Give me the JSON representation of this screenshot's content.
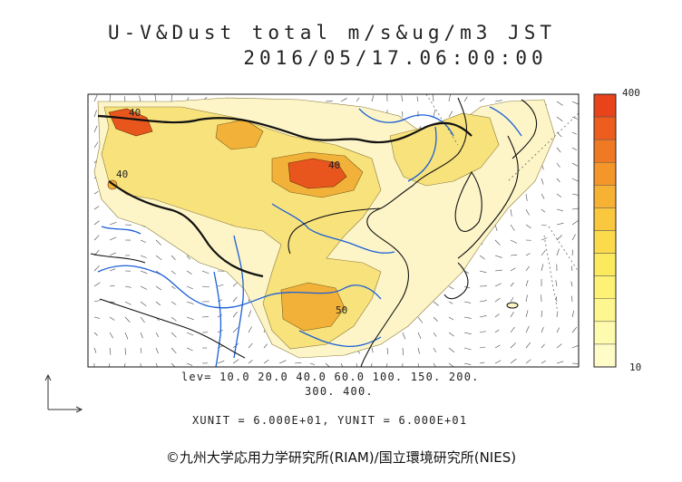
{
  "header": {
    "title_line1": "U-V&Dust total m/s&ug/m3 JST",
    "title_line2": "2016/05/17.06:00:00"
  },
  "map": {
    "contour_labels": [
      "40",
      "40",
      "40",
      "50"
    ],
    "colors": {
      "ocean": "#ffffff",
      "dust_low": "#fdf5c8",
      "dust_mid": "#f8e27c",
      "dust_high": "#f2b23a",
      "dust_peak": "#e8561d",
      "rivers": "#1a5fd6",
      "coast": "#111111"
    }
  },
  "legend": {
    "levels_line1": "lev= 10.0 20.0 40.0 60.0 100. 150. 200.",
    "levels_line2": "300. 400.",
    "units": "XUNIT = 6.000E+01, YUNIT = 6.000E+01",
    "colorbar_max": "400",
    "colorbar_min": "10",
    "colorbar_colors": [
      "#e8431a",
      "#ec5d1e",
      "#f07a24",
      "#f4962a",
      "#f7b133",
      "#f9c83e",
      "#fbdb4c",
      "#fcea5e",
      "#fdf276",
      "#fef790",
      "#fefaae",
      "#fffcc8"
    ]
  },
  "footer": {
    "credit": "©九州大学応用力学研究所(RIAM)/国立環境研究所(NIES)"
  }
}
